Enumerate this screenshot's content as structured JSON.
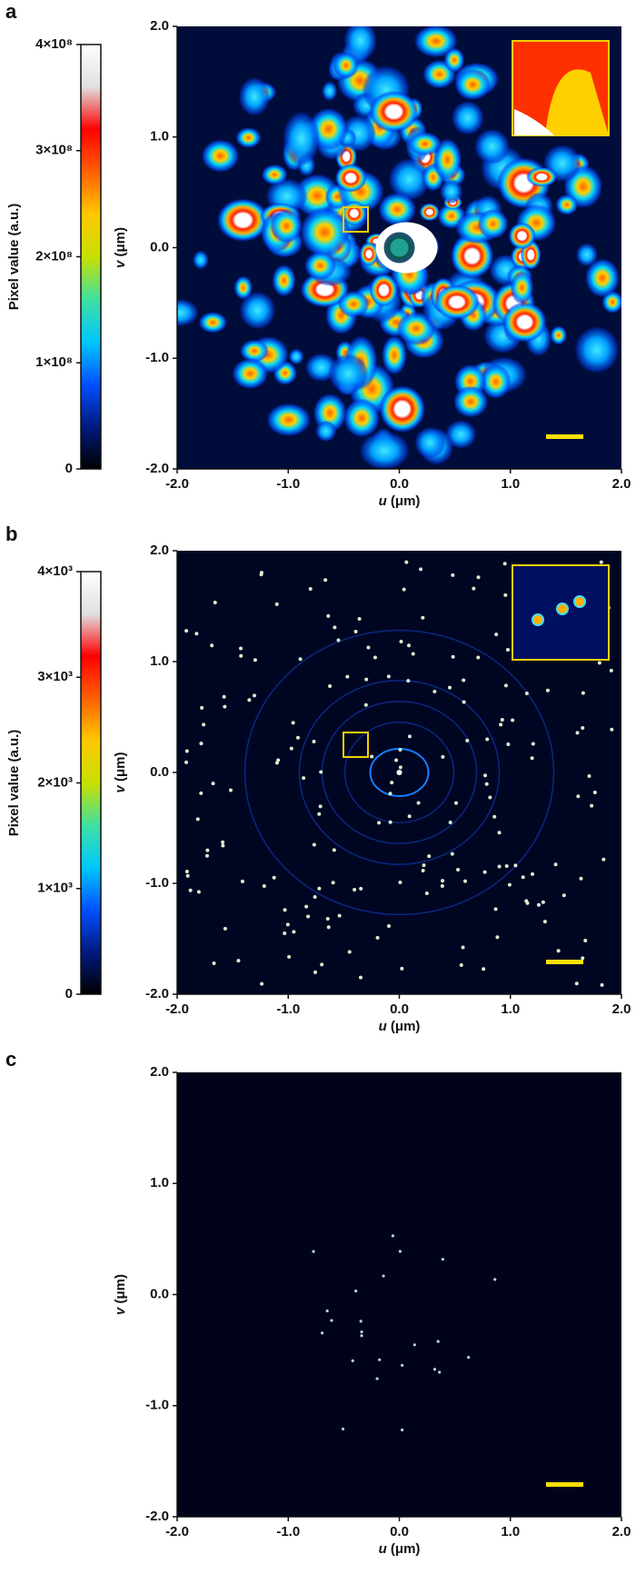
{
  "chart_data": [
    {
      "type": "heatmap",
      "panel": "a",
      "xlabel_symbol": "u",
      "xlabel_unit": "(μm)",
      "ylabel_symbol": "v",
      "ylabel_unit": "(μm)",
      "xlim": [
        -2,
        2
      ],
      "ylim": [
        -2,
        2
      ],
      "xticks": [
        {
          "value": -2,
          "label": "-2.0"
        },
        {
          "value": -1,
          "label": "-1.0"
        },
        {
          "value": 0,
          "label": "0.0"
        },
        {
          "value": 1,
          "label": "1.0"
        },
        {
          "value": 2,
          "label": "2.0"
        }
      ],
      "yticks": [
        {
          "value": -2,
          "label": "-2.0"
        },
        {
          "value": -1,
          "label": "-1.0"
        },
        {
          "value": 0,
          "label": "0.0"
        },
        {
          "value": 1,
          "label": "1.0"
        },
        {
          "value": 2,
          "label": "2.0"
        }
      ],
      "colorbar": {
        "label": "Pixel value (a.u.)",
        "lim": [
          0,
          400000000
        ],
        "ticks": [
          0,
          {
            "value": 100000000,
            "label": "1×10⁸"
          },
          {
            "value": 200000000,
            "label": "2×10⁸"
          },
          {
            "value": 300000000,
            "label": "3×10⁸"
          },
          {
            "value": 400000000,
            "label": "4×10⁸"
          }
        ],
        "colormap": [
          "#000000",
          "#001a80",
          "#0050ff",
          "#00c8ff",
          "#40e0a0",
          "#c8e000",
          "#ffc800",
          "#ff6000",
          "#ff0000",
          "#e0e0e0",
          "#ffffff"
        ]
      }
    },
    {
      "type": "heatmap",
      "panel": "b",
      "xlabel_symbol": "u",
      "xlabel_unit": "(μm)",
      "ylabel_symbol": "v",
      "ylabel_unit": "(μm)",
      "xlim": [
        -2,
        2
      ],
      "ylim": [
        -2,
        2
      ],
      "xticks": [
        {
          "value": -2,
          "label": "-2.0"
        },
        {
          "value": -1,
          "label": "-1.0"
        },
        {
          "value": 0,
          "label": "0.0"
        },
        {
          "value": 1,
          "label": "1.0"
        },
        {
          "value": 2,
          "label": "2.0"
        }
      ],
      "yticks": [
        {
          "value": -2,
          "label": "-2.0"
        },
        {
          "value": -1,
          "label": "-1.0"
        },
        {
          "value": 0,
          "label": "0.0"
        },
        {
          "value": 1,
          "label": "1.0"
        },
        {
          "value": 2,
          "label": "2.0"
        }
      ],
      "colorbar": {
        "label": "Pixel value (a.u.)",
        "lim": [
          0,
          4000
        ],
        "ticks": [
          0,
          {
            "value": 1000,
            "label": "1×10³"
          },
          {
            "value": 2000,
            "label": "2×10³"
          },
          {
            "value": 3000,
            "label": "3×10³"
          },
          {
            "value": 4000,
            "label": "4×10³"
          }
        ],
        "colormap": [
          "#000000",
          "#001a80",
          "#0050ff",
          "#00c8ff",
          "#40e0a0",
          "#c8e000",
          "#ffc800",
          "#ff6000",
          "#ff0000",
          "#e0e0e0",
          "#ffffff"
        ]
      }
    },
    {
      "type": "heatmap",
      "panel": "c",
      "xlabel_symbol": "u",
      "xlabel_unit": "(μm)",
      "ylabel_symbol": "v",
      "ylabel_unit": "(μm)",
      "xlim": [
        -2,
        2
      ],
      "ylim": [
        -2,
        2
      ],
      "xticks": [
        {
          "value": -2,
          "label": "-2.0"
        },
        {
          "value": -1,
          "label": "-1.0"
        },
        {
          "value": 0,
          "label": "0.0"
        },
        {
          "value": 1,
          "label": "1.0"
        },
        {
          "value": 2,
          "label": "2.0"
        }
      ],
      "yticks": [
        {
          "value": -2,
          "label": "-2.0"
        },
        {
          "value": -1,
          "label": "-1.0"
        },
        {
          "value": 0,
          "label": "0.0"
        },
        {
          "value": 1,
          "label": "1.0"
        },
        {
          "value": 2,
          "label": "2.0"
        }
      ]
    }
  ]
}
